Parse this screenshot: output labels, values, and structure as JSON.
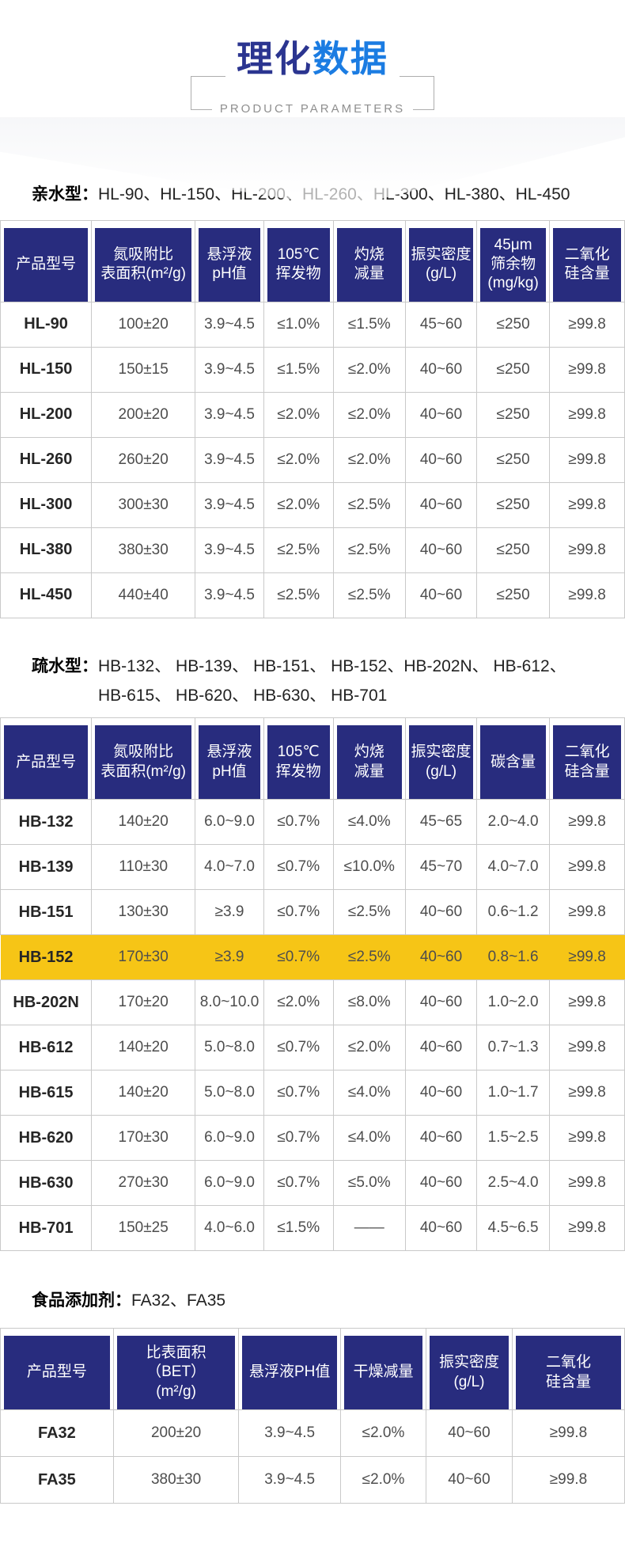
{
  "header": {
    "title_part1": "理化",
    "title_part2": "数据",
    "subtitle": "PRODUCT PARAMETERS"
  },
  "colors": {
    "header_cell_bg": "#282c7e",
    "highlight_row_bg": "#f6c516",
    "title_primary": "#2b3590",
    "title_secondary": "#1b7ce2",
    "grid_border": "#c9c9c9"
  },
  "sections": [
    {
      "label": "亲水型：",
      "models": "HL-90、HL-150、HL-200、HL-260、HL-300、HL-380、HL-450"
    },
    {
      "label": "疏水型：",
      "models": "HB-132、 HB-139、 HB-151、 HB-152、HB-202N、 HB-612、\nHB-615、 HB-620、 HB-630、 HB-701"
    },
    {
      "label": "食品添加剂：",
      "models": "FA32、FA35"
    }
  ],
  "tables": [
    {
      "columns": [
        "产品型号",
        "氮吸附比\n表面积(m²/g)",
        "悬浮液\npH值",
        "105℃\n挥发物",
        "灼烧\n减量",
        "振实密度\n(g/L)",
        "45μm\n筛余物\n(mg/kg)",
        "二氧化\n硅含量"
      ],
      "rows": [
        {
          "cells": [
            "HL-90",
            "100±20",
            "3.9~4.5",
            "≤1.0%",
            "≤1.5%",
            "45~60",
            "≤250",
            "≥99.8"
          ]
        },
        {
          "cells": [
            "HL-150",
            "150±15",
            "3.9~4.5",
            "≤1.5%",
            "≤2.0%",
            "40~60",
            "≤250",
            "≥99.8"
          ]
        },
        {
          "cells": [
            "HL-200",
            "200±20",
            "3.9~4.5",
            "≤2.0%",
            "≤2.0%",
            "40~60",
            "≤250",
            "≥99.8"
          ]
        },
        {
          "cells": [
            "HL-260",
            "260±20",
            "3.9~4.5",
            "≤2.0%",
            "≤2.0%",
            "40~60",
            "≤250",
            "≥99.8"
          ]
        },
        {
          "cells": [
            "HL-300",
            "300±30",
            "3.9~4.5",
            "≤2.0%",
            "≤2.5%",
            "40~60",
            "≤250",
            "≥99.8"
          ]
        },
        {
          "cells": [
            "HL-380",
            "380±30",
            "3.9~4.5",
            "≤2.5%",
            "≤2.5%",
            "40~60",
            "≤250",
            "≥99.8"
          ]
        },
        {
          "cells": [
            "HL-450",
            "440±40",
            "3.9~4.5",
            "≤2.5%",
            "≤2.5%",
            "40~60",
            "≤250",
            "≥99.8"
          ]
        }
      ]
    },
    {
      "columns": [
        "产品型号",
        "氮吸附比\n表面积(m²/g)",
        "悬浮液\npH值",
        "105℃\n挥发物",
        "灼烧\n减量",
        "振实密度\n(g/L)",
        "碳含量",
        "二氧化\n硅含量"
      ],
      "rows": [
        {
          "cells": [
            "HB-132",
            "140±20",
            "6.0~9.0",
            "≤0.7%",
            "≤4.0%",
            "45~65",
            "2.0~4.0",
            "≥99.8"
          ]
        },
        {
          "cells": [
            "HB-139",
            "110±30",
            "4.0~7.0",
            "≤0.7%",
            "≤10.0%",
            "45~70",
            "4.0~7.0",
            "≥99.8"
          ]
        },
        {
          "cells": [
            "HB-151",
            "130±30",
            "≥3.9",
            "≤0.7%",
            "≤2.5%",
            "40~60",
            "0.6~1.2",
            "≥99.8"
          ]
        },
        {
          "cells": [
            "HB-152",
            "170±30",
            "≥3.9",
            "≤0.7%",
            "≤2.5%",
            "40~60",
            "0.8~1.6",
            "≥99.8"
          ],
          "highlight": true
        },
        {
          "cells": [
            "HB-202N",
            "170±20",
            "8.0~10.0",
            "≤2.0%",
            "≤8.0%",
            "40~60",
            "1.0~2.0",
            "≥99.8"
          ]
        },
        {
          "cells": [
            "HB-612",
            "140±20",
            "5.0~8.0",
            "≤0.7%",
            "≤2.0%",
            "40~60",
            "0.7~1.3",
            "≥99.8"
          ]
        },
        {
          "cells": [
            "HB-615",
            "140±20",
            "5.0~8.0",
            "≤0.7%",
            "≤4.0%",
            "40~60",
            "1.0~1.7",
            "≥99.8"
          ]
        },
        {
          "cells": [
            "HB-620",
            "170±30",
            "6.0~9.0",
            "≤0.7%",
            "≤4.0%",
            "40~60",
            "1.5~2.5",
            "≥99.8"
          ]
        },
        {
          "cells": [
            "HB-630",
            "270±30",
            "6.0~9.0",
            "≤0.7%",
            "≤5.0%",
            "40~60",
            "2.5~4.0",
            "≥99.8"
          ]
        },
        {
          "cells": [
            "HB-701",
            "150±25",
            "4.0~6.0",
            "≤1.5%",
            "——",
            "40~60",
            "4.5~6.5",
            "≥99.8"
          ]
        }
      ]
    },
    {
      "columns": [
        "产品型号",
        "比表面积（BET）\n(m²/g)",
        "悬浮液PH值",
        "干燥减量",
        "振实密度\n(g/L)",
        "二氧化\n硅含量"
      ],
      "rows": [
        {
          "cells": [
            "FA32",
            "200±20",
            "3.9~4.5",
            "≤2.0%",
            "40~60",
            "≥99.8"
          ]
        },
        {
          "cells": [
            "FA35",
            "380±30",
            "3.9~4.5",
            "≤2.0%",
            "40~60",
            "≥99.8"
          ]
        }
      ]
    }
  ]
}
